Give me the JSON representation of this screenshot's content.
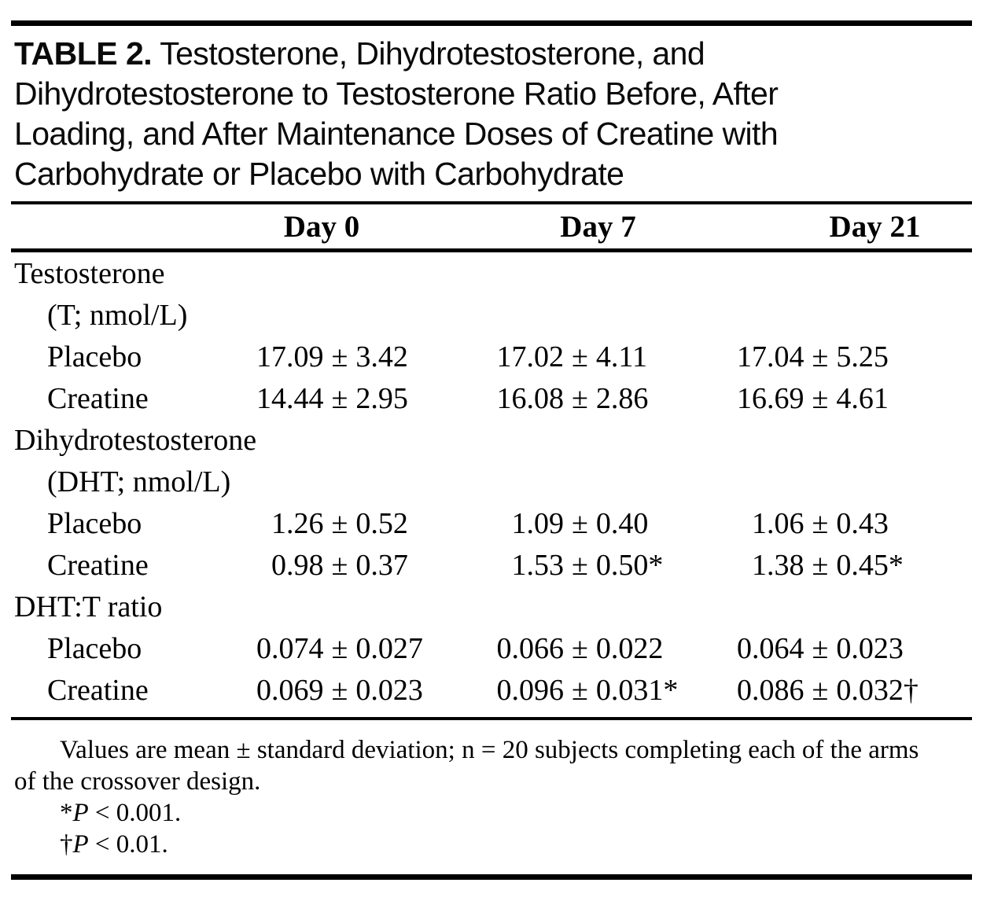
{
  "page": {
    "background": "#ffffff",
    "text_color": "#000000"
  },
  "title": {
    "tag": "TABLE 2.",
    "lines": [
      "Testosterone, Dihydrotestosterone, and",
      "Dihydrotestosterone to Testosterone Ratio Before, After",
      "Loading, and After Maintenance Doses of Creatine with",
      "Carbohydrate or Placebo with Carbohydrate"
    ]
  },
  "table": {
    "pm": "±",
    "columns": [
      "Day 0",
      "Day 7",
      "Day 21"
    ],
    "sections": [
      {
        "label": "Testosterone",
        "sublabel": "(T; nmol/L)",
        "rows": [
          {
            "label": "Placebo",
            "values": [
              {
                "mean": "17.09",
                "sd": "3.42"
              },
              {
                "mean": "17.02",
                "sd": "4.11"
              },
              {
                "mean": "17.04",
                "sd": "5.25"
              }
            ]
          },
          {
            "label": "Creatine",
            "values": [
              {
                "mean": "14.44",
                "sd": "2.95"
              },
              {
                "mean": "16.08",
                "sd": "2.86"
              },
              {
                "mean": "16.69",
                "sd": "4.61"
              }
            ]
          }
        ]
      },
      {
        "label": "Dihydrotestosterone",
        "sublabel": "(DHT; nmol/L)",
        "rows": [
          {
            "label": "Placebo",
            "values": [
              {
                "mean": "1.26",
                "sd": "0.52"
              },
              {
                "mean": "1.09",
                "sd": "0.40"
              },
              {
                "mean": "1.06",
                "sd": "0.43"
              }
            ]
          },
          {
            "label": "Creatine",
            "values": [
              {
                "mean": "0.98",
                "sd": "0.37"
              },
              {
                "mean": "1.53",
                "sd": "0.50*"
              },
              {
                "mean": "1.38",
                "sd": "0.45*"
              }
            ]
          }
        ]
      },
      {
        "label": "DHT:T ratio",
        "rows": [
          {
            "label": "Placebo",
            "values": [
              {
                "mean": "0.074",
                "sd": "0.027"
              },
              {
                "mean": "0.066",
                "sd": "0.022"
              },
              {
                "mean": "0.064",
                "sd": "0.023"
              }
            ]
          },
          {
            "label": "Creatine",
            "values": [
              {
                "mean": "0.069",
                "sd": "0.023"
              },
              {
                "mean": "0.096",
                "sd": "0.031*"
              },
              {
                "mean": "0.086",
                "sd": "0.032†"
              }
            ]
          }
        ]
      }
    ]
  },
  "footnotes": {
    "line1": "Values are mean ± standard deviation; n = 20 subjects completing each of the arms",
    "line2": "of the crossover design.",
    "fn1_sym": "*",
    "fn1_var": "P",
    "fn1_rest": " < 0.001.",
    "fn2_sym": "†",
    "fn2_var": "P",
    "fn2_rest": " < 0.01."
  }
}
